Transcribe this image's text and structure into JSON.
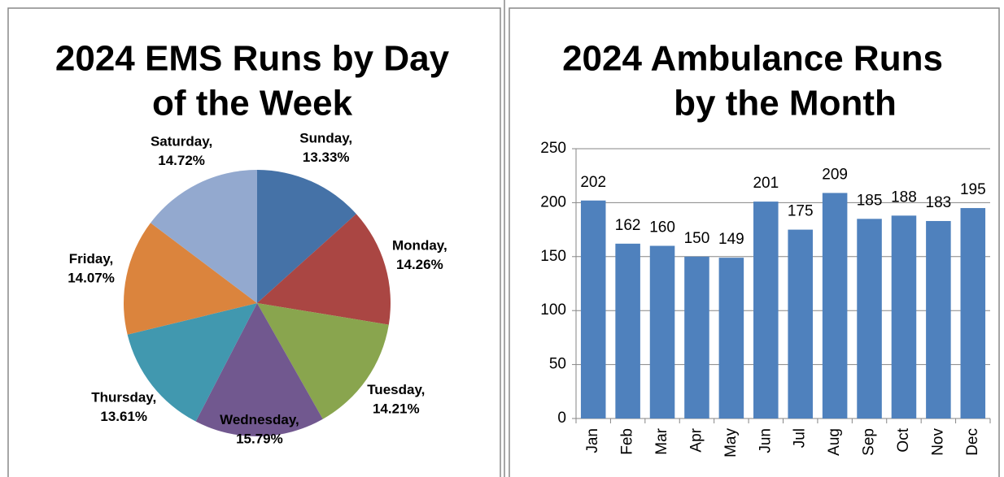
{
  "chart_data": [
    {
      "type": "pie",
      "title": [
        "2024 EMS Runs by Day",
        "of the Week"
      ],
      "categories": [
        "Sunday",
        "Monday",
        "Tuesday",
        "Wednesday",
        "Thursday",
        "Friday",
        "Saturday"
      ],
      "label_separator": ",",
      "values": [
        13.33,
        14.26,
        14.21,
        15.79,
        13.61,
        14.07,
        14.72
      ],
      "value_labels": [
        "13.33%",
        "14.26%",
        "14.21%",
        "15.79%",
        "13.61%",
        "14.07%",
        "14.72%"
      ],
      "colors": [
        "#4572a7",
        "#aa4643",
        "#89a54e",
        "#71588f",
        "#4198af",
        "#db843d",
        "#93a9cf"
      ]
    },
    {
      "type": "bar",
      "title": [
        "2024 Ambulance Runs",
        "by the Month"
      ],
      "categories": [
        "Jan",
        "Feb",
        "Mar",
        "Apr",
        "May",
        "Jun",
        "Jul",
        "Aug",
        "Sep",
        "Oct",
        "Nov",
        "Dec"
      ],
      "values": [
        202,
        162,
        160,
        150,
        149,
        201,
        175,
        209,
        185,
        188,
        183,
        195
      ],
      "color": "#4f81bd",
      "ylim": [
        0,
        250
      ],
      "yticks": [
        0,
        50,
        100,
        150,
        200,
        250
      ],
      "grid": true
    }
  ]
}
